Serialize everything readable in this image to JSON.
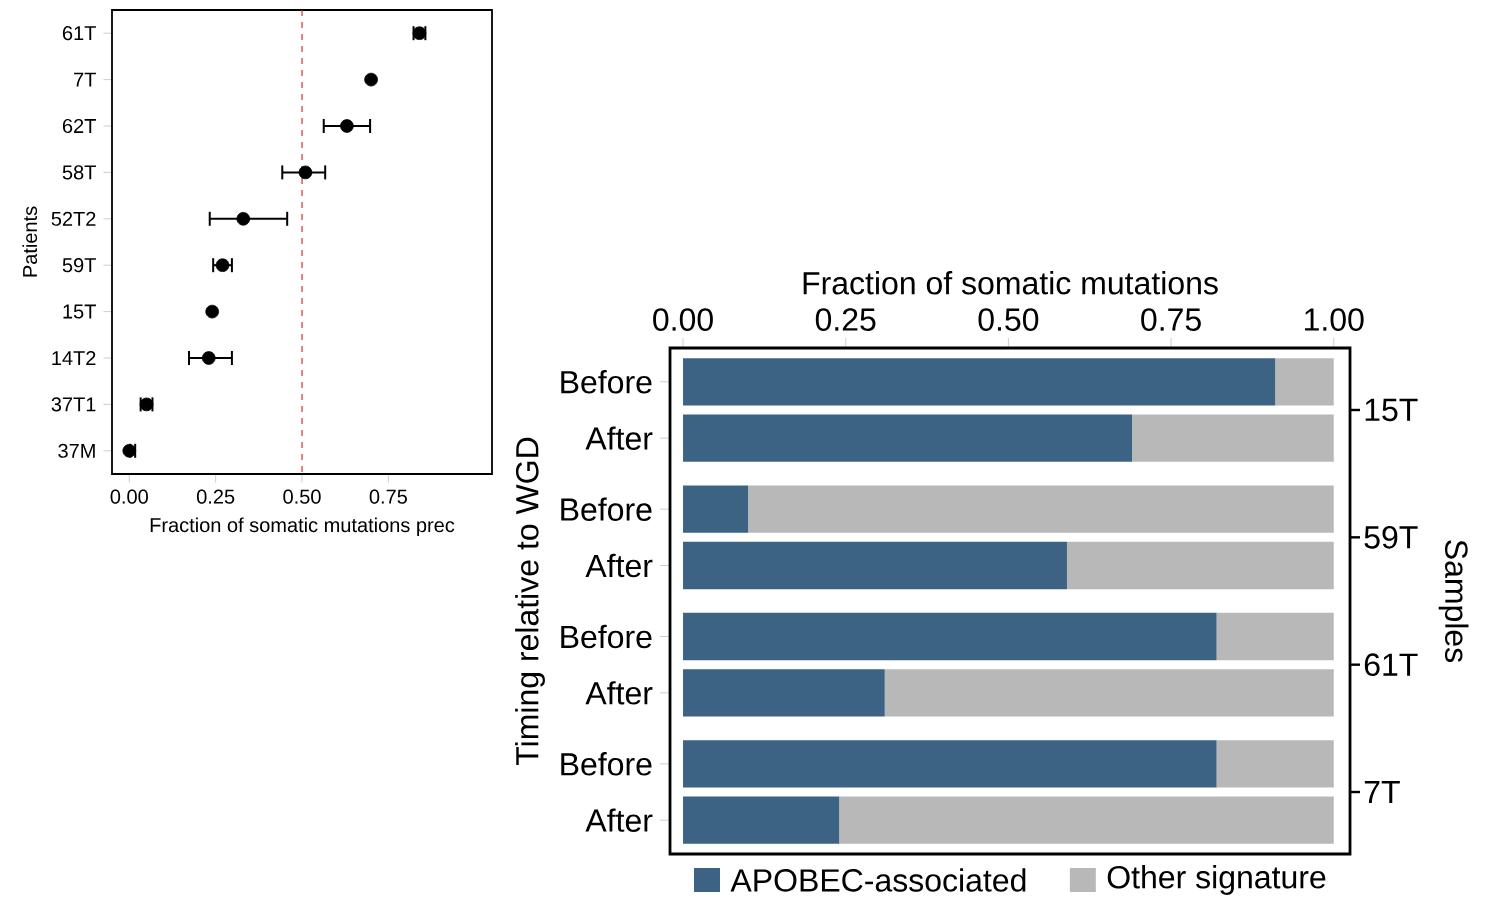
{
  "chart_data": [
    {
      "type": "scatter",
      "orientation": "horizontal",
      "color": "#000000",
      "marker": "circle",
      "ylabel": "Patients",
      "xlabel": "Fraction of somatic mutations prec",
      "categories": [
        "61T",
        "7T",
        "62T",
        "58T",
        "52T2",
        "59T",
        "15T",
        "14T2",
        "37T1",
        "37M"
      ],
      "values": [
        0.84,
        0.7,
        0.63,
        0.51,
        0.33,
        0.27,
        0.24,
        0.23,
        0.05,
        0.0
      ],
      "errors": [
        [
          0.82,
          0.86
        ],
        null,
        [
          0.56,
          0.7
        ],
        [
          0.44,
          0.57
        ],
        [
          0.23,
          0.46
        ],
        [
          0.24,
          0.3
        ],
        null,
        [
          0.17,
          0.3
        ],
        [
          0.03,
          0.07
        ],
        [
          0.0,
          0.02
        ]
      ],
      "xlim": [
        -0.05,
        1.05
      ],
      "xticks": [
        {
          "value": 0,
          "label": "0.00"
        },
        {
          "value": 0.25,
          "label": "0.25"
        },
        {
          "value": 0.5,
          "label": "0.50"
        },
        {
          "value": 0.75,
          "label": "0.75"
        }
      ],
      "ref_lines": [
        {
          "axis": "x",
          "value": 0.5,
          "color": "#cc2222",
          "line_style": "dashed"
        }
      ]
    },
    {
      "type": "bar",
      "orientation": "horizontal",
      "stacked": true,
      "legend": "bottom",
      "xlabel": "Fraction of somatic mutations",
      "ylabel": "Timing relative to WGD",
      "y2label": "Samples",
      "categories": [
        "Before",
        "After",
        "Before",
        "After",
        "Before",
        "After",
        "Before",
        "After"
      ],
      "annotations": [
        "15T",
        "59T",
        "61T",
        "7T"
      ],
      "series": [
        {
          "name": "APOBEC-associated",
          "color": "#3d6384",
          "values": [
            0.91,
            0.69,
            0.1,
            0.59,
            0.82,
            0.31,
            0.82,
            0.24
          ]
        },
        {
          "name": "Other signature",
          "color": "#b8b8b8",
          "values": [
            0.09,
            0.31,
            0.9,
            0.41,
            0.18,
            0.69,
            0.18,
            0.76
          ]
        }
      ],
      "xlim": [
        -0.02,
        1.025
      ],
      "xticks": [
        {
          "value": 0,
          "label": "0.00"
        },
        {
          "value": 0.25,
          "label": "0.25"
        },
        {
          "value": 0.5,
          "label": "0.50"
        },
        {
          "value": 0.75,
          "label": "0.75"
        },
        {
          "value": 1,
          "label": "1.00"
        }
      ]
    }
  ]
}
